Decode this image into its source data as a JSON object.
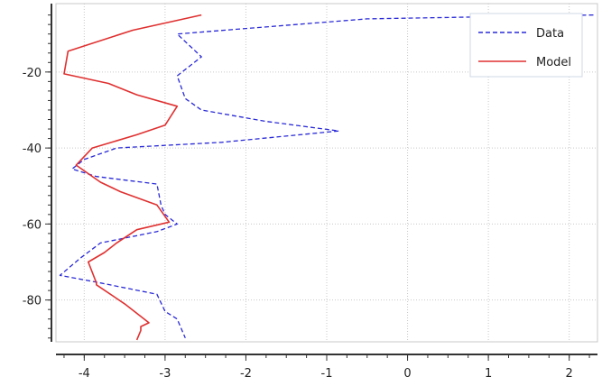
{
  "chart_data": {
    "type": "line",
    "title": "",
    "xlabel": "",
    "ylabel": "",
    "xlim": [
      -4.35,
      2.35
    ],
    "ylim": [
      -91,
      -2
    ],
    "x_ticks": [
      -4,
      -3,
      -2,
      -1,
      0,
      1,
      2
    ],
    "y_ticks": [
      -20,
      -40,
      -60,
      -80
    ],
    "grid": true,
    "legend_position": "top-right",
    "series": [
      {
        "name": "Data",
        "color": "#2a2ad8",
        "dash": "dashed",
        "points": [
          [
            2.3,
            -5
          ],
          [
            -0.5,
            -6
          ],
          [
            -2.85,
            -10
          ],
          [
            -2.55,
            -16
          ],
          [
            -2.85,
            -21
          ],
          [
            -2.75,
            -27
          ],
          [
            -2.55,
            -30
          ],
          [
            -1.75,
            -33
          ],
          [
            -0.85,
            -35.5
          ],
          [
            -2.3,
            -38.5
          ],
          [
            -3.6,
            -40
          ],
          [
            -4.0,
            -43
          ],
          [
            -4.15,
            -45.5
          ],
          [
            -3.85,
            -47.5
          ],
          [
            -3.1,
            -49.5
          ],
          [
            -3.05,
            -55
          ],
          [
            -3.0,
            -57.5
          ],
          [
            -2.85,
            -60
          ],
          [
            -3.1,
            -62
          ],
          [
            -3.8,
            -65
          ],
          [
            -4.05,
            -69
          ],
          [
            -4.3,
            -73.5
          ],
          [
            -3.8,
            -75.5
          ],
          [
            -3.1,
            -78.5
          ],
          [
            -3.0,
            -83
          ],
          [
            -2.85,
            -85
          ],
          [
            -2.75,
            -90
          ]
        ]
      },
      {
        "name": "Model",
        "color": "#e03030",
        "dash": "solid",
        "points": [
          [
            -2.55,
            -5
          ],
          [
            -3.4,
            -9
          ],
          [
            -4.2,
            -14.5
          ],
          [
            -4.25,
            -20.5
          ],
          [
            -3.7,
            -23
          ],
          [
            -3.35,
            -26
          ],
          [
            -2.85,
            -29
          ],
          [
            -3.0,
            -34
          ],
          [
            -3.35,
            -36.5
          ],
          [
            -3.9,
            -40
          ],
          [
            -4.1,
            -44.5
          ],
          [
            -3.8,
            -49
          ],
          [
            -3.55,
            -51.5
          ],
          [
            -3.1,
            -55
          ],
          [
            -2.95,
            -59.5
          ],
          [
            -3.35,
            -61.5
          ],
          [
            -3.6,
            -65
          ],
          [
            -3.75,
            -67.5
          ],
          [
            -3.95,
            -70
          ],
          [
            -3.85,
            -75.5
          ],
          [
            -3.85,
            -76
          ],
          [
            -3.5,
            -81
          ],
          [
            -3.2,
            -86
          ],
          [
            -3.3,
            -87
          ],
          [
            -3.3,
            -88
          ],
          [
            -3.35,
            -90.5
          ]
        ]
      }
    ]
  }
}
